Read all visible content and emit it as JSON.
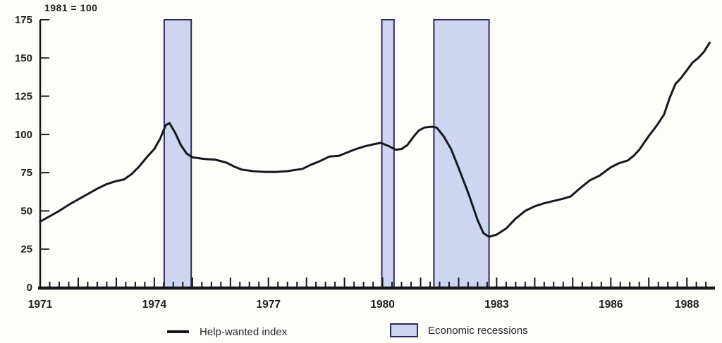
{
  "title": "1981 = 100",
  "legend": {
    "line_label": "Help-wanted index",
    "recession_label": "Economic recessions"
  },
  "colors": {
    "background": "#fdfdfa",
    "line": "#17171f",
    "recession_fill": "#cdd5f1",
    "recession_border": "#2b2b55",
    "axis": "#15151a",
    "text": "#1c1c1c"
  },
  "chart_data": {
    "type": "line",
    "title": "1981 = 100",
    "xlabel": "",
    "ylabel": "",
    "x_range": [
      1971,
      1988.72
    ],
    "y_range": [
      0,
      175
    ],
    "y_ticks": [
      0,
      25,
      50,
      75,
      100,
      125,
      150,
      175
    ],
    "x_labeled_years": [
      1971,
      1974,
      1977,
      1980,
      1983,
      1986,
      1988
    ],
    "x_minor_tick_step_years": 0.25,
    "grid": false,
    "legend_position": "bottom",
    "series": [
      {
        "name": "Help-wanted index",
        "points": [
          [
            1971.0,
            43
          ],
          [
            1971.25,
            46.5
          ],
          [
            1971.5,
            50
          ],
          [
            1971.75,
            54
          ],
          [
            1972.0,
            57.5
          ],
          [
            1972.25,
            61
          ],
          [
            1972.5,
            64.5
          ],
          [
            1972.75,
            67.5
          ],
          [
            1973.0,
            69.5
          ],
          [
            1973.2,
            70.5
          ],
          [
            1973.4,
            74
          ],
          [
            1973.6,
            79
          ],
          [
            1973.8,
            85
          ],
          [
            1974.0,
            90.5
          ],
          [
            1974.15,
            97
          ],
          [
            1974.3,
            106
          ],
          [
            1974.4,
            107.5
          ],
          [
            1974.55,
            101
          ],
          [
            1974.7,
            93
          ],
          [
            1974.85,
            87.5
          ],
          [
            1975.0,
            85
          ],
          [
            1975.3,
            84
          ],
          [
            1975.6,
            83.5
          ],
          [
            1975.9,
            81.5
          ],
          [
            1976.1,
            79
          ],
          [
            1976.3,
            77
          ],
          [
            1976.6,
            76
          ],
          [
            1976.9,
            75.5
          ],
          [
            1977.2,
            75.5
          ],
          [
            1977.5,
            76
          ],
          [
            1977.9,
            77.5
          ],
          [
            1978.1,
            80
          ],
          [
            1978.35,
            82.5
          ],
          [
            1978.6,
            85.5
          ],
          [
            1978.85,
            86
          ],
          [
            1979.0,
            87.5
          ],
          [
            1979.25,
            90
          ],
          [
            1979.5,
            92
          ],
          [
            1979.75,
            93.5
          ],
          [
            1979.95,
            94.5
          ],
          [
            1980.15,
            92.5
          ],
          [
            1980.35,
            90
          ],
          [
            1980.5,
            90.5
          ],
          [
            1980.65,
            93
          ],
          [
            1980.8,
            98
          ],
          [
            1980.95,
            102.5
          ],
          [
            1981.1,
            104.5
          ],
          [
            1981.3,
            105
          ],
          [
            1981.42,
            104.5
          ],
          [
            1981.6,
            99
          ],
          [
            1981.8,
            90.5
          ],
          [
            1982.0,
            78
          ],
          [
            1982.25,
            62
          ],
          [
            1982.5,
            44
          ],
          [
            1982.65,
            35.5
          ],
          [
            1982.8,
            33
          ],
          [
            1983.0,
            34.5
          ],
          [
            1983.25,
            38.5
          ],
          [
            1983.5,
            45
          ],
          [
            1983.75,
            50
          ],
          [
            1984.0,
            53
          ],
          [
            1984.25,
            55
          ],
          [
            1984.5,
            56.5
          ],
          [
            1984.75,
            58
          ],
          [
            1984.95,
            59.5
          ],
          [
            1985.2,
            65
          ],
          [
            1985.45,
            70
          ],
          [
            1985.7,
            73
          ],
          [
            1986.0,
            78.5
          ],
          [
            1986.2,
            81
          ],
          [
            1986.45,
            83
          ],
          [
            1986.6,
            86
          ],
          [
            1986.75,
            90
          ],
          [
            1987.0,
            99
          ],
          [
            1987.2,
            105.5
          ],
          [
            1987.4,
            113
          ],
          [
            1987.55,
            124
          ],
          [
            1987.7,
            133
          ],
          [
            1987.85,
            137
          ],
          [
            1988.0,
            142
          ],
          [
            1988.15,
            147
          ],
          [
            1988.3,
            150
          ],
          [
            1988.45,
            154
          ],
          [
            1988.6,
            160
          ]
        ]
      }
    ],
    "recession_bands": [
      {
        "start": 1974.26,
        "end": 1974.97
      },
      {
        "start": 1979.98,
        "end": 1980.3
      },
      {
        "start": 1981.35,
        "end": 1982.8
      }
    ]
  }
}
